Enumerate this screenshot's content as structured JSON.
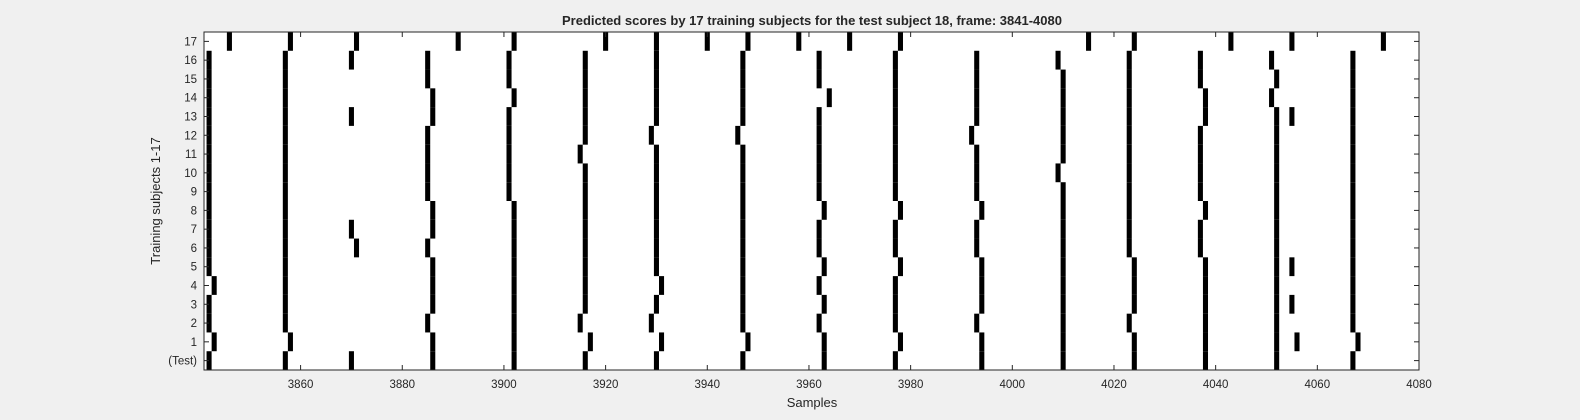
{
  "chart_data": {
    "type": "heatmap",
    "title": "Predicted scores by 17 training subjects for the test subject 18, frame: 3841-4080",
    "xlabel": "Samples",
    "ylabel": "Training subjects 1-17",
    "xlim": [
      3841,
      4080
    ],
    "xticks": [
      3860,
      3880,
      3900,
      3920,
      3940,
      3960,
      3980,
      4000,
      4020,
      4040,
      4060,
      4080
    ],
    "ytick_labels": [
      "(Test)",
      "1",
      "2",
      "3",
      "4",
      "5",
      "6",
      "7",
      "8",
      "9",
      "10",
      "11",
      "12",
      "13",
      "14",
      "15",
      "16",
      "17"
    ],
    "grid": false,
    "colors": {
      "mark": "#000000",
      "background": "#ffffff",
      "figure": "#f0f0f0"
    },
    "rows": [
      {
        "label": "(Test)",
        "peaks": [
          3842,
          3857,
          3870,
          3886,
          3902,
          3916,
          3930,
          3947,
          3963,
          3977,
          3994,
          4010,
          4024,
          4038,
          4052,
          4067
        ]
      },
      {
        "label": "1",
        "peaks": [
          3843,
          3858,
          3886,
          3902,
          3917,
          3931,
          3948,
          3963,
          3978,
          3994,
          4010,
          4024,
          4038,
          4052,
          4056,
          4068
        ]
      },
      {
        "label": "2",
        "peaks": [
          3842,
          3857,
          3885,
          3902,
          3915,
          3929,
          3947,
          3962,
          3977,
          3993,
          4010,
          4023,
          4038,
          4052,
          4067
        ]
      },
      {
        "label": "3",
        "peaks": [
          3842,
          3857,
          3886,
          3902,
          3916,
          3930,
          3947,
          3963,
          3977,
          3994,
          4010,
          4024,
          4038,
          4052,
          4055,
          4067
        ]
      },
      {
        "label": "4",
        "peaks": [
          3843,
          3857,
          3886,
          3902,
          3916,
          3931,
          3947,
          3962,
          3977,
          3994,
          4010,
          4024,
          4038,
          4052,
          4067
        ]
      },
      {
        "label": "5",
        "peaks": [
          3842,
          3857,
          3886,
          3902,
          3916,
          3930,
          3947,
          3963,
          3978,
          3994,
          4010,
          4024,
          4038,
          4052,
          4055,
          4067
        ]
      },
      {
        "label": "6",
        "peaks": [
          3842,
          3857,
          3871,
          3885,
          3902,
          3916,
          3930,
          3947,
          3962,
          3977,
          3993,
          4010,
          4023,
          4037,
          4052,
          4067
        ]
      },
      {
        "label": "7",
        "peaks": [
          3842,
          3857,
          3870,
          3886,
          3902,
          3916,
          3930,
          3947,
          3962,
          3977,
          3993,
          4010,
          4023,
          4037,
          4052,
          4067
        ]
      },
      {
        "label": "8",
        "peaks": [
          3842,
          3857,
          3886,
          3902,
          3916,
          3930,
          3947,
          3963,
          3978,
          3994,
          4010,
          4023,
          4038,
          4052,
          4067
        ]
      },
      {
        "label": "9",
        "peaks": [
          3842,
          3857,
          3885,
          3901,
          3916,
          3930,
          3947,
          3962,
          3977,
          3993,
          4010,
          4023,
          4037,
          4052,
          4067
        ]
      },
      {
        "label": "10",
        "peaks": [
          3842,
          3857,
          3885,
          3901,
          3916,
          3930,
          3947,
          3962,
          3977,
          3993,
          4009,
          4023,
          4037,
          4052,
          4067
        ]
      },
      {
        "label": "11",
        "peaks": [
          3842,
          3857,
          3885,
          3901,
          3915,
          3930,
          3947,
          3962,
          3977,
          3993,
          4010,
          4023,
          4037,
          4052,
          4067
        ]
      },
      {
        "label": "12",
        "peaks": [
          3842,
          3857,
          3885,
          3901,
          3916,
          3929,
          3946,
          3962,
          3977,
          3992,
          4010,
          4023,
          4037,
          4052,
          4067
        ]
      },
      {
        "label": "13",
        "peaks": [
          3842,
          3857,
          3870,
          3886,
          3901,
          3916,
          3930,
          3947,
          3962,
          3977,
          3993,
          4010,
          4023,
          4038,
          4052,
          4055,
          4067
        ]
      },
      {
        "label": "14",
        "peaks": [
          3842,
          3857,
          3886,
          3902,
          3916,
          3930,
          3947,
          3964,
          3977,
          3993,
          4010,
          4023,
          4038,
          4051,
          4067
        ]
      },
      {
        "label": "15",
        "peaks": [
          3842,
          3857,
          3885,
          3901,
          3916,
          3930,
          3947,
          3962,
          3977,
          3993,
          4010,
          4023,
          4037,
          4052,
          4067
        ]
      },
      {
        "label": "16",
        "peaks": [
          3842,
          3857,
          3870,
          3885,
          3901,
          3916,
          3930,
          3947,
          3962,
          3977,
          3993,
          4009,
          4023,
          4037,
          4051,
          4067
        ]
      },
      {
        "label": "17",
        "peaks": [
          3846,
          3858,
          3871,
          3891,
          3902,
          3920,
          3930,
          3940,
          3948,
          3958,
          3968,
          3978,
          4015,
          4024,
          4043,
          4055,
          4073
        ]
      }
    ]
  }
}
